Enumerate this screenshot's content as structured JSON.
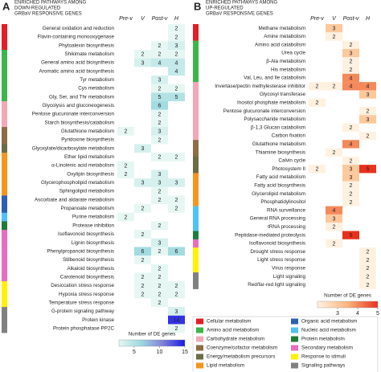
{
  "chart_data": [
    {
      "type": "heatmap",
      "panel": "A",
      "title_lines": [
        "ENRICHED PATHWAYS AMONG",
        "DOWN-REGULATED",
        "GRBaV RESPONSIVE GENES"
      ],
      "columns": [
        "Pre-v",
        "V",
        "Post-v",
        "H"
      ],
      "rows": [
        "General oxidation and reduction",
        "Flavin-containing monooxygenase",
        "Phytoalexin biosynthesis",
        "Shikimate metabolism",
        "General amino acid biosynthesis",
        "Aromatic amino acid biosynthesis",
        "Tyr metabolism",
        "Cys metabolism",
        "Gly, Ser, and Thr metabolism",
        "Glycolysis and gluconeogenesis",
        "Pentose glucuronate interconversion",
        "Starch biosynthesis/catabolism",
        "Glutathione metabolism",
        "Pyridoxine biosynthesis",
        "Glyoxylate/dicarboxylate metabolism",
        "Ether lipid metabolism",
        "α-Linolenic acid metabolism",
        "Oxylipin biosynthesis",
        "Glycerophospholipid metabolism",
        "Sphingolipid metabolism",
        "Ascorbate and aldarate metabolism",
        "Propanoate metabolism",
        "Purine metabolism",
        "Protease inhibition",
        "Isoflavonoid biosynthesis",
        "Lignin biosynthesis",
        "Phenylpropanoid biosynthesis",
        "Stilbenoid biosynthesis",
        "Alkaloid biosynthesis",
        "Carotenoid biosynthesis",
        "Desiccation stress response",
        "Hypoxia stress response",
        "Temperature stress response",
        "G-protein signaling pathway",
        "Protein kinase",
        "Protein phosphatase PP2C"
      ],
      "values": [
        [
          null,
          null,
          null,
          2
        ],
        [
          null,
          null,
          null,
          2
        ],
        [
          null,
          null,
          2,
          3
        ],
        [
          null,
          2,
          2,
          2
        ],
        [
          null,
          3,
          4,
          4
        ],
        [
          null,
          null,
          null,
          4
        ],
        [
          null,
          null,
          3,
          null
        ],
        [
          null,
          null,
          2,
          2
        ],
        [
          null,
          null,
          5,
          5
        ],
        [
          null,
          null,
          6,
          null
        ],
        [
          null,
          null,
          2,
          null
        ],
        [
          null,
          null,
          2,
          null
        ],
        [
          2,
          null,
          3,
          null
        ],
        [
          null,
          null,
          2,
          null
        ],
        [
          null,
          3,
          null,
          null
        ],
        [
          null,
          null,
          2,
          2
        ],
        [
          2,
          null,
          null,
          null
        ],
        [
          2,
          null,
          3,
          null
        ],
        [
          null,
          3,
          3,
          3
        ],
        [
          null,
          null,
          2,
          null
        ],
        [
          null,
          null,
          2,
          2
        ],
        [
          null,
          2,
          null,
          2
        ],
        [
          2,
          null,
          null,
          null
        ],
        [
          null,
          null,
          2,
          null
        ],
        [
          null,
          2,
          null,
          null
        ],
        [
          null,
          null,
          3,
          null
        ],
        [
          null,
          6,
          2,
          6
        ],
        [
          null,
          2,
          null,
          null
        ],
        [
          null,
          null,
          2,
          null
        ],
        [
          null,
          2,
          2,
          null
        ],
        [
          null,
          2,
          2,
          2
        ],
        [
          null,
          2,
          2,
          2
        ],
        [
          null,
          null,
          2,
          null
        ],
        [
          null,
          null,
          null,
          3
        ],
        [
          null,
          null,
          null,
          14
        ],
        [
          null,
          null,
          null,
          2
        ]
      ],
      "row_colors": [
        "#e31e24",
        "#e31e24",
        "#e31e24",
        "#3db54a",
        "#3db54a",
        "#3db54a",
        "#3db54a",
        "#3db54a",
        "#3db54a",
        "#f4a6b7",
        "#f4a6b7",
        "#f4a6b7",
        "#8c6d46",
        "#8c6d46",
        "#6b6b47",
        "#f7941d",
        "#f7941d",
        "#f7941d",
        "#f7941d",
        "#f7941d",
        "#2e5fb5",
        "#2e5fb5",
        "#4fc3f7",
        "#1e7b3a",
        "#e86dc0",
        "#e86dc0",
        "#e86dc0",
        "#e86dc0",
        "#e86dc0",
        "#e86dc0",
        "#fff200",
        "#fff200",
        "#fff200",
        "#808080",
        "#808080",
        "#808080"
      ],
      "colorbar": {
        "label": "Number of DE genes",
        "lim": [
          2,
          15
        ],
        "ticks": [
          5,
          10,
          15
        ],
        "colors": [
          "#e6f7f3",
          "#9dd9df",
          "#8080d8",
          "#1a1ae6"
        ]
      }
    },
    {
      "type": "heatmap",
      "panel": "B",
      "title_lines": [
        "ENRICHED PATHWAYS AMONG",
        "UP-REGULATED",
        "GRBaV RESPONSIVE GENES"
      ],
      "columns": [
        "Pre-v",
        "V",
        "Post-v",
        "H"
      ],
      "rows": [
        "Methane metabolism",
        "Amine metabolism",
        "Amino acid catabolism",
        "Urea cycle",
        "β-Ala metabolism",
        "His metabolism",
        "Val, Leu, and Ile catabolism",
        "Invertase/pectin methylesterase inhibitor",
        "Glycosyl transferase",
        "Inositol phosphate metabolism",
        "Pentose glucuronate interconversion",
        "Polysaccharide metabolism",
        "β-1,3 Glucan catabolism",
        "Carbon fixation",
        "Glutathione metabolism",
        "Thiamine biosynthesis",
        "Calvin cycle",
        "Photosystem II",
        "Fatty acid metabolism",
        "Fatty acid biosynthesis",
        "Glycerolipid metabolism",
        "Phosphatidylinositol",
        "RNA surveillance",
        "General RNA processing",
        "tRNA processing",
        "Peptidase-mediated proteolysis",
        "Isoflavonoid biosynthesis",
        "Drought stress response",
        "Light stress response",
        "Virus response",
        "Light signaling",
        "Red/far-red light signaling"
      ],
      "values": [
        [
          null,
          3,
          null,
          null
        ],
        [
          null,
          2,
          null,
          null
        ],
        [
          null,
          null,
          2,
          null
        ],
        [
          null,
          null,
          3,
          null
        ],
        [
          null,
          null,
          2,
          null
        ],
        [
          null,
          null,
          2,
          null
        ],
        [
          null,
          null,
          4,
          null
        ],
        [
          2,
          2,
          4,
          4
        ],
        [
          null,
          null,
          null,
          3
        ],
        [
          2,
          null,
          null,
          null
        ],
        [
          null,
          null,
          null,
          2
        ],
        [
          null,
          null,
          null,
          3
        ],
        [
          null,
          null,
          2,
          null
        ],
        [
          null,
          null,
          null,
          2
        ],
        [
          null,
          null,
          4,
          null
        ],
        [
          null,
          2,
          null,
          null
        ],
        [
          null,
          null,
          2,
          null
        ],
        [
          2,
          null,
          3,
          5
        ],
        [
          null,
          null,
          3,
          null
        ],
        [
          null,
          null,
          2,
          null
        ],
        [
          null,
          null,
          2,
          null
        ],
        [
          null,
          null,
          2,
          null
        ],
        [
          null,
          4,
          null,
          null
        ],
        [
          null,
          3,
          null,
          null
        ],
        [
          null,
          2,
          null,
          null
        ],
        [
          null,
          null,
          5,
          null
        ],
        [
          null,
          2,
          null,
          null
        ],
        [
          null,
          null,
          null,
          2
        ],
        [
          null,
          null,
          null,
          2
        ],
        [
          null,
          null,
          null,
          2
        ],
        [
          null,
          null,
          null,
          2
        ],
        [
          null,
          null,
          null,
          2
        ]
      ],
      "row_colors": [
        "#e31e24",
        "#e31e24",
        "#3db54a",
        "#3db54a",
        "#3db54a",
        "#3db54a",
        "#3db54a",
        "#f4a6b7",
        "#f4a6b7",
        "#f4a6b7",
        "#f4a6b7",
        "#f4a6b7",
        "#f4a6b7",
        "#f4a6b7",
        "#8c6d46",
        "#8c6d46",
        "#6b6b47",
        "#6b6b47",
        "#f7941d",
        "#f7941d",
        "#f7941d",
        "#f7941d",
        "#4fc3f7",
        "#4fc3f7",
        "#4fc3f7",
        "#1e7b3a",
        "#e86dc0",
        "#fff200",
        "#fff200",
        "#fff200",
        "#808080",
        "#808080"
      ],
      "colorbar": {
        "label": "Number of DE genes",
        "lim": [
          2,
          5
        ],
        "ticks": [
          3,
          4,
          5
        ],
        "colors": [
          "#fff1e0",
          "#fbb57c",
          "#e8301c"
        ]
      }
    }
  ],
  "category_legend": [
    {
      "name": "Cellular metabolism",
      "color": "#e31e24"
    },
    {
      "name": "Amino acid metabolism",
      "color": "#3db54a"
    },
    {
      "name": "Carbohydrate metabolism",
      "color": "#f4a6b7"
    },
    {
      "name": "Coenzyme/cofactor metabolism",
      "color": "#8c6d46"
    },
    {
      "name": "Energy/metabolism precursors",
      "color": "#6b6b47"
    },
    {
      "name": "Lipid metabolism",
      "color": "#f7941d"
    },
    {
      "name": "Organic acid metabolism",
      "color": "#2e5fb5"
    },
    {
      "name": "Nucleic acid metabolism",
      "color": "#4fc3f7"
    },
    {
      "name": "Protein metabolism",
      "color": "#1e7b3a"
    },
    {
      "name": "Secondary metabolism",
      "color": "#e86dc0"
    },
    {
      "name": "Response to stimuli",
      "color": "#fff200"
    },
    {
      "name": "Signaling pathways",
      "color": "#808080"
    }
  ]
}
